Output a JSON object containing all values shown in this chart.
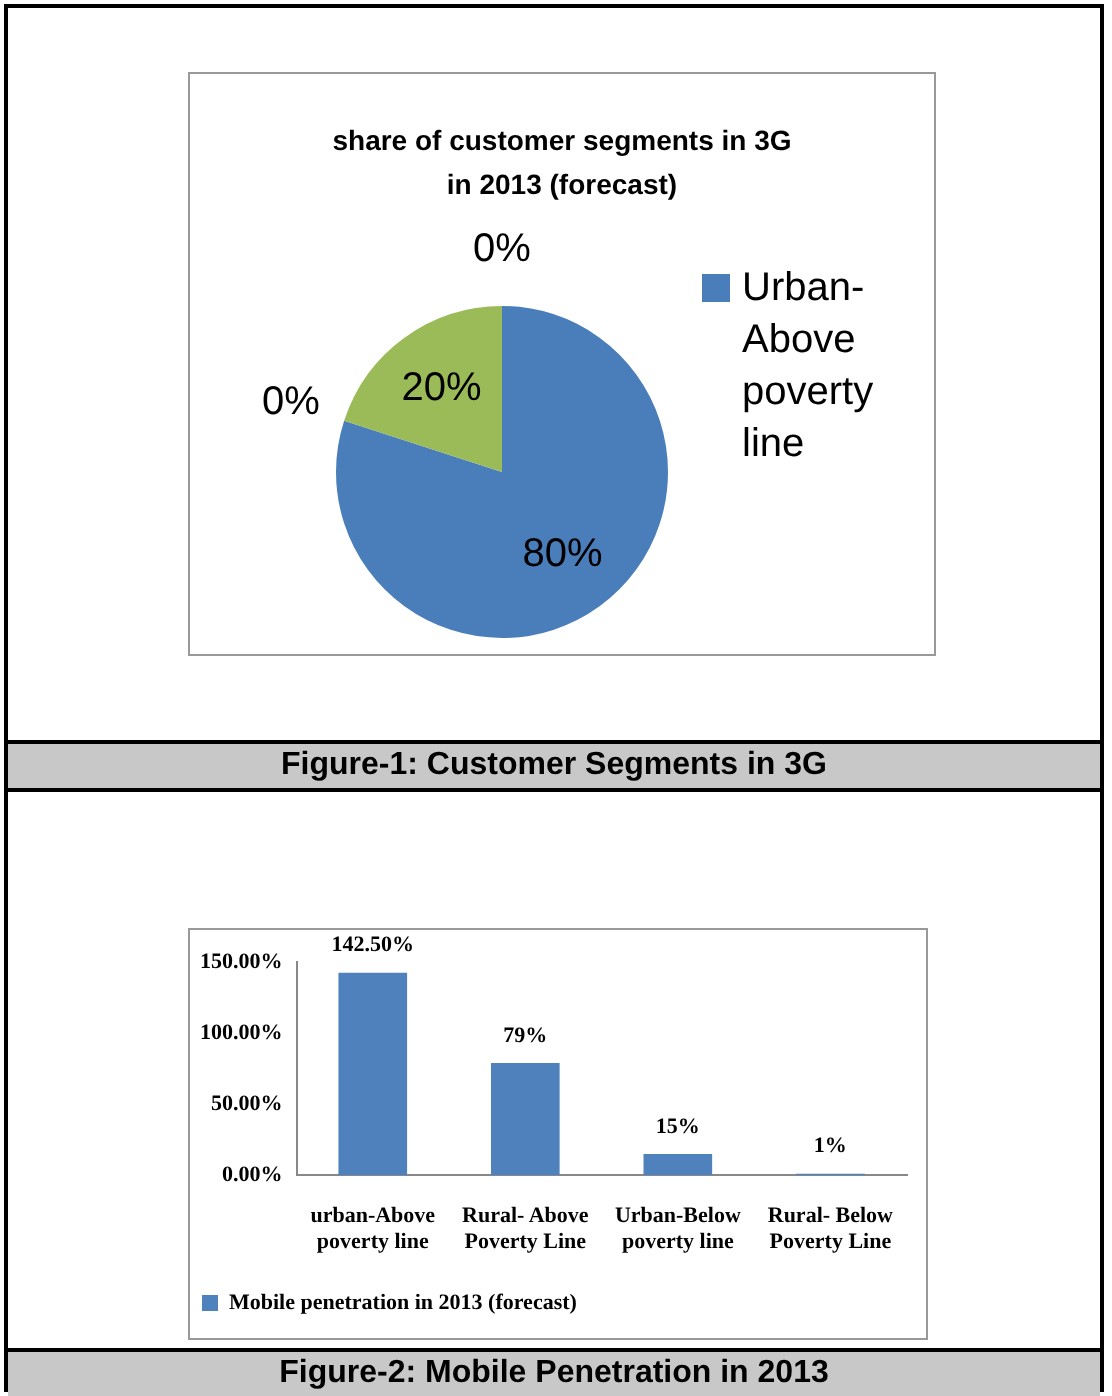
{
  "chart_data": [
    {
      "type": "pie",
      "title": "share of customer segments in 3G in 2013 (forecast)",
      "categories": [
        "Urban-Above poverty line",
        null,
        null,
        null
      ],
      "values": [
        80,
        0,
        20,
        0
      ],
      "colors": [
        "#4a7ebb",
        "#c0504d",
        "#9bbb59",
        "#8064a2"
      ],
      "value_labels": [
        "80%",
        "0%",
        "20%",
        "0%"
      ],
      "legend": "right",
      "annotations": [
        "Figure-1: Customer Segments in 3G"
      ]
    },
    {
      "type": "bar",
      "categories": [
        "urban-Above poverty line",
        "Rural- Above Poverty Line",
        "Urban-Below poverty line",
        "Rural- Below Poverty Line"
      ],
      "series": [
        {
          "name": "Mobile penetration in 2013 (forecast)",
          "color": "#4f81bd",
          "values": [
            142.5,
            79,
            15,
            1
          ],
          "value_labels": [
            "142.50%",
            "79%",
            "15%",
            "1%"
          ]
        }
      ],
      "ylim": [
        0,
        150
      ],
      "yticks": [
        {
          "value": 0,
          "label": "0.00%"
        },
        {
          "value": 50,
          "label": "50.00%"
        },
        {
          "value": 100,
          "label": "100.00%"
        },
        {
          "value": 150,
          "label": "150.00%"
        }
      ],
      "grid": false,
      "legend": "bottom left",
      "annotations": [
        "Figure-2: Mobile Penetration in 2013"
      ]
    }
  ]
}
